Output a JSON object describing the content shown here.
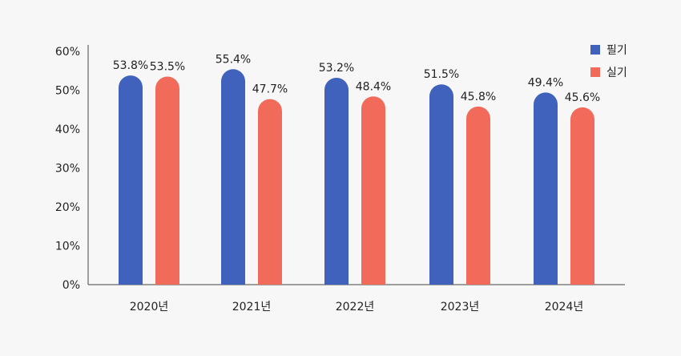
{
  "chart_data": {
    "type": "bar",
    "categories": [
      "2020년",
      "2021년",
      "2022년",
      "2023년",
      "2024년"
    ],
    "series": [
      {
        "name": "필기",
        "values": [
          53.8,
          55.4,
          53.2,
          51.5,
          49.4
        ],
        "labels": [
          "53.8%",
          "55.4%",
          "53.2%",
          "51.5%",
          "49.4%"
        ]
      },
      {
        "name": "실기",
        "values": [
          53.5,
          47.7,
          48.4,
          45.8,
          45.6
        ],
        "labels": [
          "53.5%",
          "47.7%",
          "48.4%",
          "45.8%",
          "45.6%"
        ]
      }
    ],
    "yticks": [
      "0%",
      "10%",
      "20%",
      "30%",
      "40%",
      "50%",
      "60%"
    ],
    "ylim": [
      0,
      60
    ],
    "grid": false,
    "legend": "top-right",
    "colors": {
      "필기": "#4062bd",
      "실기": "#f26b5a"
    }
  }
}
